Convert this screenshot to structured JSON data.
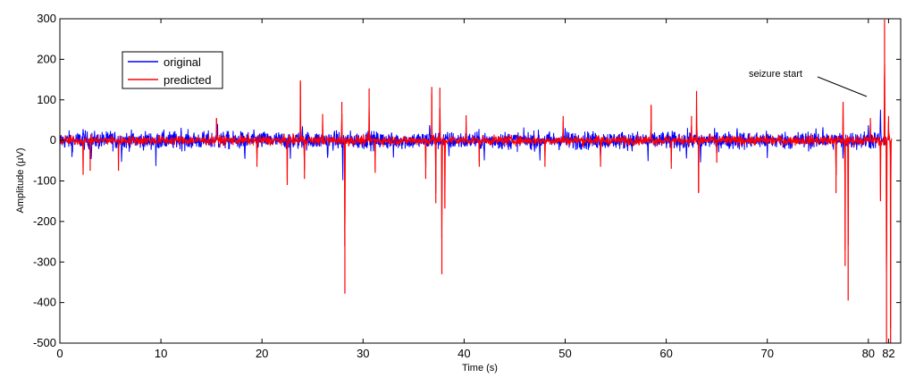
{
  "chart_data": {
    "type": "line",
    "title": "",
    "xlabel": "Time (s)",
    "ylabel": "Amplitude (μV)",
    "xlim": [
      0,
      83.2
    ],
    "ylim": [
      -500,
      300
    ],
    "x_ticks": [
      0,
      10,
      20,
      30,
      40,
      50,
      60,
      70,
      80,
      82
    ],
    "x_tick_labels": [
      "0",
      "10",
      "20",
      "30",
      "40",
      "50",
      "60",
      "70",
      "80",
      "82"
    ],
    "y_ticks": [
      -500,
      -400,
      -300,
      -200,
      -100,
      0,
      100,
      200,
      300
    ],
    "y_tick_labels": [
      "-500",
      "-400",
      "-300",
      "-200",
      "-100",
      "0",
      "100",
      "200",
      "300"
    ],
    "grid": false,
    "legend_placement": "top-left",
    "colors": {
      "original": "#0000ff",
      "predicted": "#ff0000",
      "axes": "#000000"
    },
    "series": [
      {
        "name": "original",
        "color": "#0000ff",
        "description_points": [
          [
            0,
            5
          ],
          [
            1.2,
            -45
          ],
          [
            2.3,
            30
          ],
          [
            3.1,
            -60
          ],
          [
            5.0,
            25
          ],
          [
            6.1,
            -55
          ],
          [
            9.5,
            -65
          ],
          [
            12.0,
            35
          ],
          [
            15.6,
            45
          ],
          [
            18.3,
            -55
          ],
          [
            22.8,
            -55
          ],
          [
            24.0,
            40
          ],
          [
            26.5,
            -55
          ],
          [
            28.0,
            -100
          ],
          [
            30.5,
            35
          ],
          [
            33.0,
            -45
          ],
          [
            36.6,
            50
          ],
          [
            38.5,
            -45
          ],
          [
            42.0,
            -50
          ],
          [
            47.5,
            -55
          ],
          [
            50.0,
            35
          ],
          [
            53.5,
            -45
          ],
          [
            58.2,
            -55
          ],
          [
            62.0,
            -55
          ],
          [
            63.4,
            -60
          ],
          [
            67.0,
            35
          ],
          [
            70.0,
            -45
          ],
          [
            75.5,
            40
          ],
          [
            77.5,
            -55
          ],
          [
            80.0,
            45
          ],
          [
            81.2,
            80
          ],
          [
            81.6,
            -20
          ]
        ]
      },
      {
        "name": "predicted",
        "color": "#ff0000",
        "spikes": [
          [
            2.3,
            -85
          ],
          [
            3.0,
            -75
          ],
          [
            5.8,
            -75
          ],
          [
            15.5,
            55
          ],
          [
            19.5,
            -65
          ],
          [
            22.5,
            -110
          ],
          [
            23.8,
            148
          ],
          [
            24.2,
            -95
          ],
          [
            26.0,
            65
          ],
          [
            27.9,
            95
          ],
          [
            28.2,
            -378
          ],
          [
            30.6,
            128
          ],
          [
            31.2,
            -80
          ],
          [
            36.2,
            -95
          ],
          [
            36.8,
            132
          ],
          [
            37.2,
            -155
          ],
          [
            37.6,
            130
          ],
          [
            37.8,
            -330
          ],
          [
            38.1,
            -168
          ],
          [
            40.2,
            62
          ],
          [
            41.5,
            -65
          ],
          [
            48.0,
            -65
          ],
          [
            49.8,
            60
          ],
          [
            53.5,
            -65
          ],
          [
            58.5,
            88
          ],
          [
            60.5,
            -70
          ],
          [
            62.5,
            60
          ],
          [
            63.0,
            122
          ],
          [
            63.2,
            -130
          ],
          [
            65.0,
            -55
          ],
          [
            76.8,
            -130
          ],
          [
            77.5,
            95
          ],
          [
            77.7,
            -310
          ],
          [
            78.0,
            -395
          ],
          [
            80.2,
            55
          ],
          [
            81.2,
            -150
          ],
          [
            81.6,
            298
          ],
          [
            81.8,
            -500
          ],
          [
            82.0,
            60
          ],
          [
            82.2,
            -500
          ]
        ]
      }
    ],
    "annotations": [
      {
        "text": "seizure start",
        "x": 80.7,
        "y": 150,
        "arrow_to": [
          81.5,
          110
        ]
      }
    ]
  }
}
